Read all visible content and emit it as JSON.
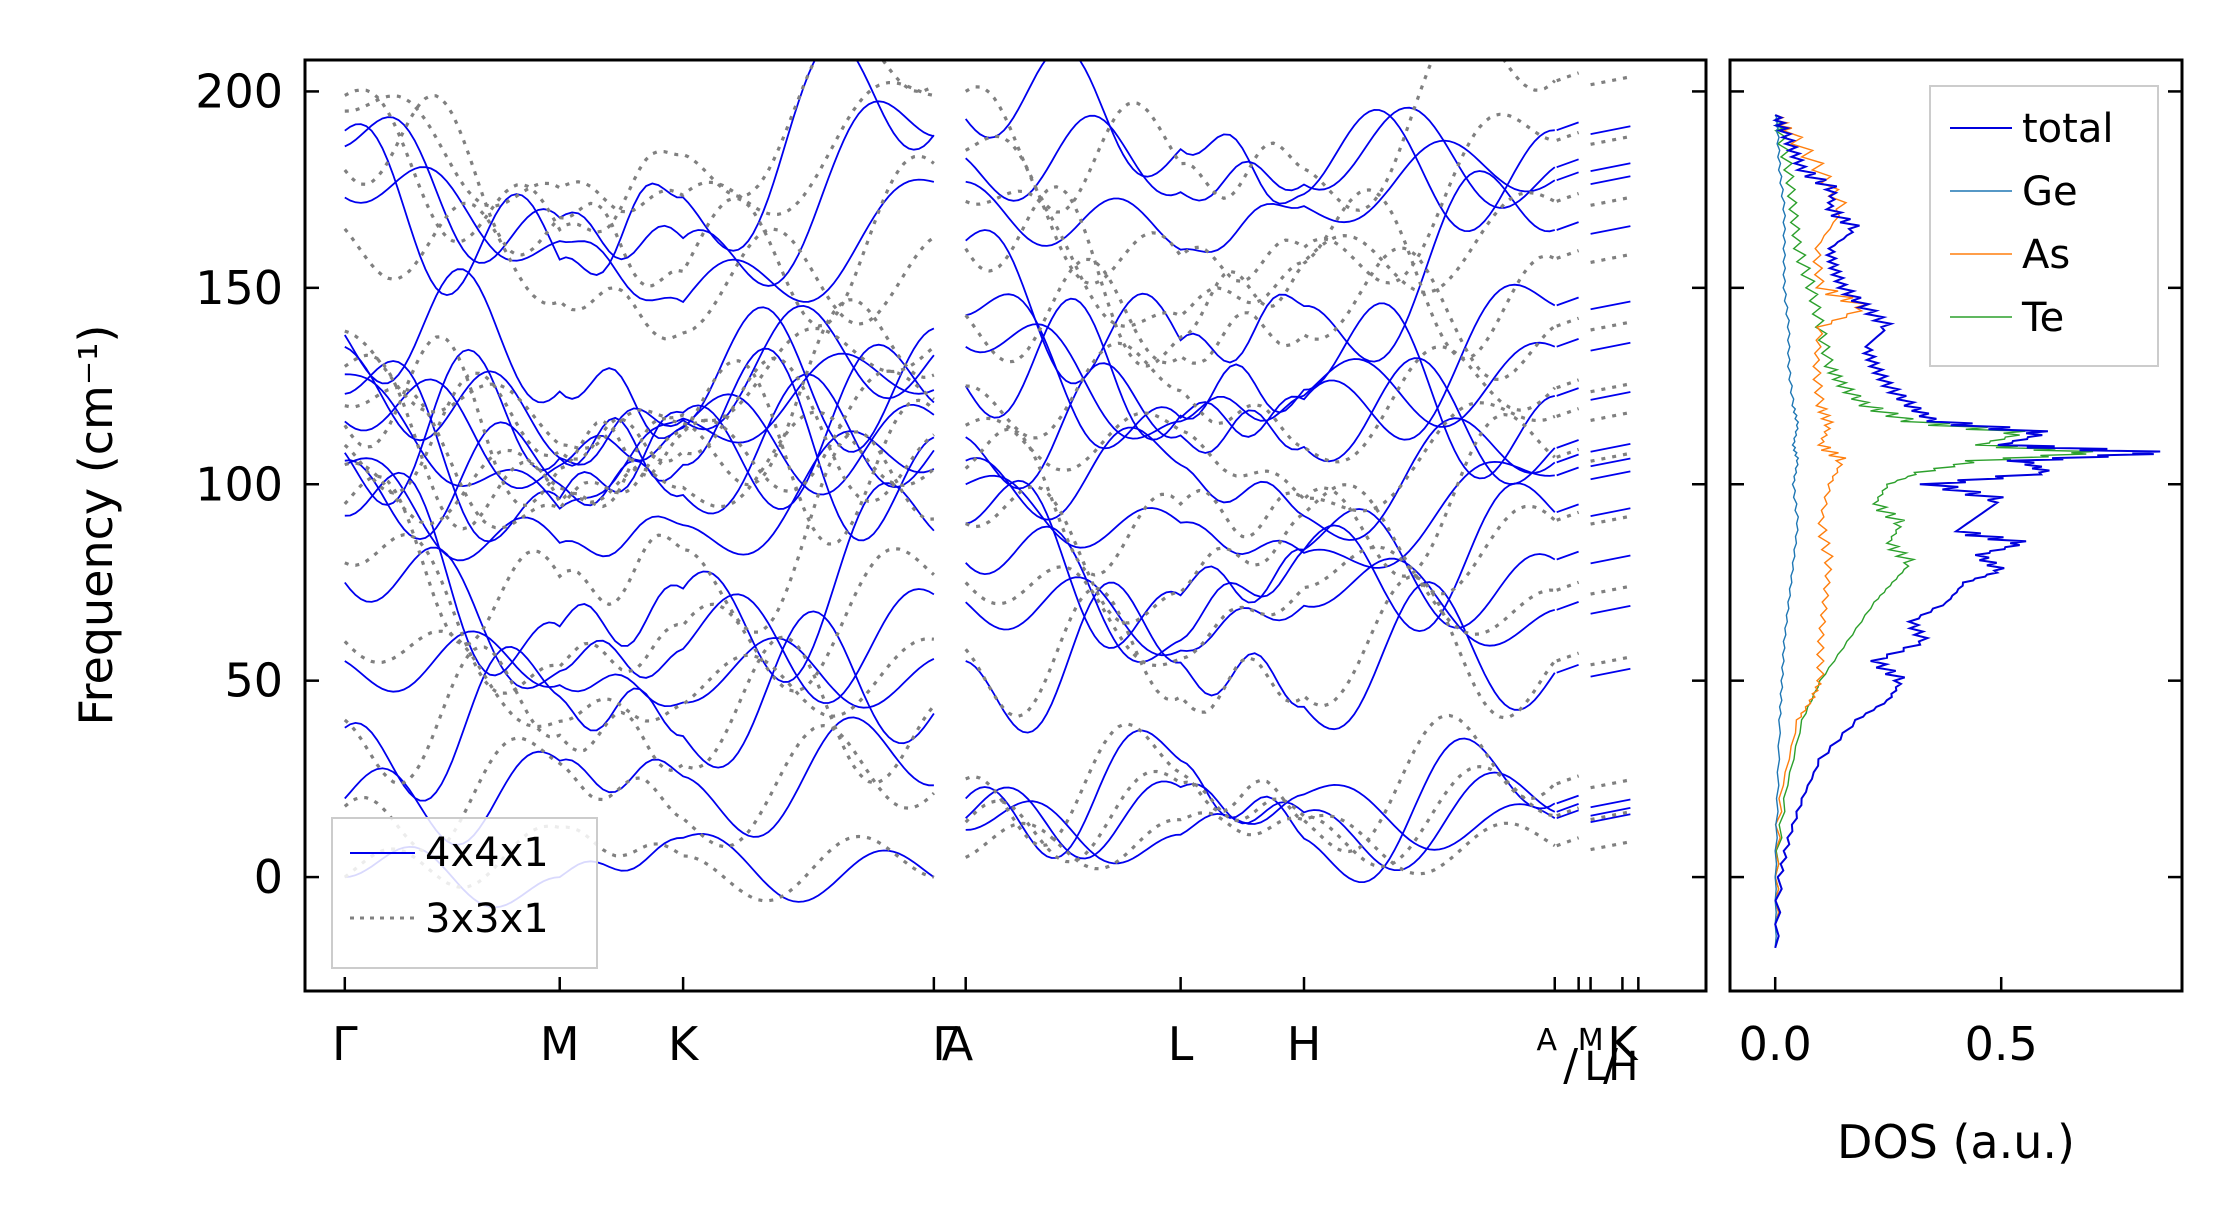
{
  "chart_data": [
    {
      "type": "line",
      "title": "",
      "xlabel": "",
      "ylabel": "Frequency (cm⁻¹)",
      "ylim": [
        -29,
        208
      ],
      "xlim": [
        -0.1,
        3.42
      ],
      "grid": false,
      "yticks": [
        0,
        50,
        100,
        150,
        200
      ],
      "ytick_labels": [
        "0",
        "50",
        "100",
        "150",
        "200"
      ],
      "high_symmetry_points": [
        {
          "label": "Γ",
          "k": 0.0
        },
        {
          "label": "M",
          "k": 0.54
        },
        {
          "label": "K",
          "k": 0.85
        },
        {
          "label": "Γ",
          "k": 1.48
        },
        {
          "label": "A",
          "k": 1.56
        },
        {
          "label": "L",
          "k": 2.1
        },
        {
          "label": "H",
          "k": 2.41
        },
        {
          "label": "A",
          "k": 3.04
        },
        {
          "label": "M",
          "k": 3.1
        },
        {
          "label": "L",
          "k": 3.13
        },
        {
          "label": "K",
          "k": 3.21
        },
        {
          "label": "H",
          "k": 3.25
        }
      ],
      "legend": {
        "position": "bottom-left",
        "entries": [
          "4x4x1",
          "3x3x1"
        ]
      },
      "series": [
        {
          "name": "4x4x1",
          "color": "#0000ee",
          "style": "solid",
          "band_values_at_gamma_cm-1": [
            0,
            20,
            38,
            55,
            75,
            92,
            105,
            106,
            108,
            116,
            123,
            128,
            135,
            138,
            173,
            186,
            190
          ],
          "band_values_at_A_cm-1": [
            12,
            15,
            20,
            55,
            70,
            80,
            90,
            100,
            106,
            112,
            125,
            135,
            143,
            162,
            177,
            183,
            193
          ]
        },
        {
          "name": "3x3x1",
          "color": "#808080",
          "style": "dotted",
          "band_values_at_gamma_cm-1": [
            0,
            18,
            40,
            60,
            80,
            95,
            105,
            110,
            115,
            120,
            130,
            139,
            165,
            180,
            195,
            199
          ],
          "band_values_at_A_cm-1": [
            5,
            14,
            25,
            58,
            75,
            90,
            104,
            115,
            125,
            143,
            160,
            172,
            185,
            200
          ]
        }
      ]
    },
    {
      "type": "line",
      "title": "",
      "xlabel": "DOS (a.u.)",
      "ylabel": "",
      "xlim": [
        -0.1,
        0.9
      ],
      "ylim": [
        -29,
        208
      ],
      "xticks": [
        0.0,
        0.5
      ],
      "xtick_labels": [
        "0.0",
        "0.5"
      ],
      "legend": {
        "position": "top-right",
        "entries": [
          "total",
          "Ge",
          "As",
          "Te"
        ]
      },
      "series": [
        {
          "name": "total",
          "color": "#0000dd",
          "freq": [
            -18,
            0,
            10,
            20,
            30,
            40,
            45,
            50,
            55,
            60,
            65,
            70,
            75,
            78,
            82,
            85,
            88,
            92,
            96,
            100,
            103,
            106,
            108,
            110,
            113,
            116,
            120,
            125,
            130,
            135,
            140,
            145,
            150,
            155,
            160,
            165,
            170,
            175,
            180,
            185,
            190,
            194
          ],
          "values": [
            0.0,
            0.01,
            0.03,
            0.06,
            0.1,
            0.18,
            0.25,
            0.28,
            0.22,
            0.33,
            0.3,
            0.38,
            0.42,
            0.5,
            0.45,
            0.55,
            0.4,
            0.45,
            0.5,
            0.35,
            0.6,
            0.55,
            0.85,
            0.5,
            0.6,
            0.35,
            0.3,
            0.25,
            0.22,
            0.2,
            0.25,
            0.2,
            0.15,
            0.13,
            0.12,
            0.18,
            0.12,
            0.13,
            0.06,
            0.04,
            0.02,
            0.0
          ]
        },
        {
          "name": "Ge",
          "color": "#1f77b4",
          "freq": [
            -18,
            0,
            20,
            40,
            50,
            60,
            70,
            80,
            90,
            100,
            106,
            110,
            115,
            120,
            130,
            140,
            150,
            160,
            170,
            180,
            190,
            194
          ],
          "values": [
            0.0,
            0.0,
            0.005,
            0.01,
            0.015,
            0.02,
            0.03,
            0.04,
            0.05,
            0.04,
            0.05,
            0.04,
            0.05,
            0.04,
            0.03,
            0.03,
            0.02,
            0.02,
            0.02,
            0.01,
            0.005,
            0.0
          ]
        },
        {
          "name": "As",
          "color": "#ff7f0e",
          "freq": [
            -18,
            0,
            20,
            40,
            45,
            50,
            60,
            70,
            80,
            90,
            100,
            106,
            110,
            115,
            120,
            130,
            140,
            145,
            150,
            160,
            170,
            180,
            190,
            194
          ],
          "values": [
            0.0,
            0.0,
            0.01,
            0.05,
            0.08,
            0.1,
            0.1,
            0.11,
            0.12,
            0.1,
            0.12,
            0.15,
            0.1,
            0.12,
            0.1,
            0.09,
            0.1,
            0.2,
            0.1,
            0.09,
            0.15,
            0.1,
            0.03,
            0.0
          ]
        },
        {
          "name": "Te",
          "color": "#2ca02c",
          "freq": [
            -18,
            0,
            20,
            40,
            50,
            60,
            70,
            75,
            80,
            85,
            90,
            95,
            100,
            103,
            106,
            108,
            110,
            113,
            116,
            120,
            125,
            130,
            140,
            150,
            160,
            170,
            180,
            190,
            194
          ],
          "values": [
            0.0,
            0.0,
            0.02,
            0.06,
            0.1,
            0.16,
            0.22,
            0.26,
            0.3,
            0.25,
            0.28,
            0.22,
            0.25,
            0.32,
            0.45,
            0.7,
            0.45,
            0.55,
            0.3,
            0.2,
            0.15,
            0.12,
            0.1,
            0.08,
            0.05,
            0.04,
            0.03,
            0.01,
            0.0
          ]
        }
      ]
    }
  ]
}
